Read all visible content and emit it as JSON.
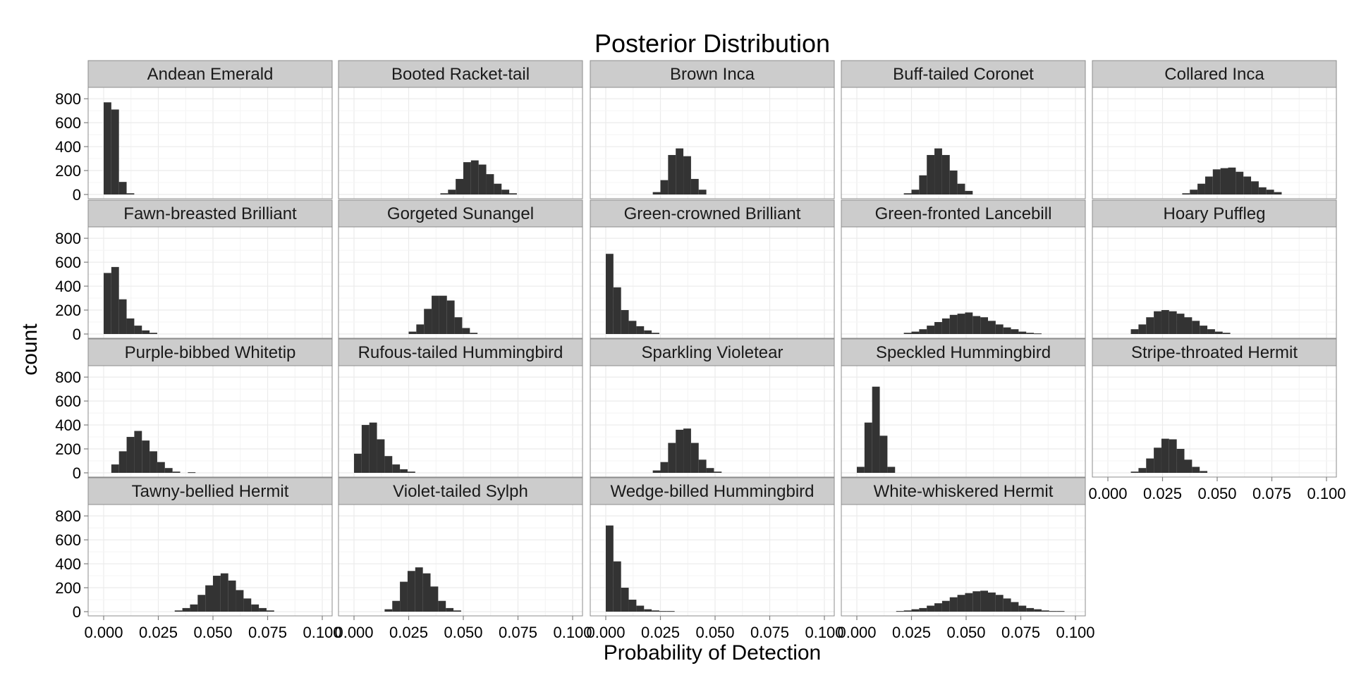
{
  "chart_data": {
    "type": "bar",
    "subtype": "faceted-histogram",
    "title": "Posterior Distribution",
    "xlabel": "Probability of Detection",
    "ylabel": "count",
    "xlim": [
      0,
      0.1
    ],
    "ylim": [
      0,
      800
    ],
    "x_ticks": [
      "0.000",
      "0.025",
      "0.050",
      "0.075",
      "0.100"
    ],
    "y_ticks": [
      "0",
      "200",
      "400",
      "600",
      "800"
    ],
    "bin_width": 0.0035,
    "grid": true,
    "facet_columns": 5,
    "bar_color": "#333333",
    "panel_background": "#ffffff",
    "strip_background": "#cccccc",
    "gridline_color": "#ebebeb",
    "panels": [
      {
        "name": "Andean Emerald",
        "bins": [
          {
            "x": 0.0,
            "count": 770
          },
          {
            "x": 0.0035,
            "count": 710
          },
          {
            "x": 0.007,
            "count": 105
          },
          {
            "x": 0.0105,
            "count": 10
          }
        ]
      },
      {
        "name": "Booted Racket-tail",
        "bins": [
          {
            "x": 0.0395,
            "count": 10
          },
          {
            "x": 0.043,
            "count": 40
          },
          {
            "x": 0.0465,
            "count": 130
          },
          {
            "x": 0.05,
            "count": 270
          },
          {
            "x": 0.0535,
            "count": 285
          },
          {
            "x": 0.057,
            "count": 250
          },
          {
            "x": 0.0605,
            "count": 170
          },
          {
            "x": 0.064,
            "count": 90
          },
          {
            "x": 0.0675,
            "count": 40
          },
          {
            "x": 0.071,
            "count": 10
          }
        ]
      },
      {
        "name": "Brown Inca",
        "bins": [
          {
            "x": 0.0215,
            "count": 20
          },
          {
            "x": 0.025,
            "count": 120
          },
          {
            "x": 0.0285,
            "count": 330
          },
          {
            "x": 0.032,
            "count": 385
          },
          {
            "x": 0.0355,
            "count": 320
          },
          {
            "x": 0.039,
            "count": 130
          },
          {
            "x": 0.0425,
            "count": 40
          }
        ]
      },
      {
        "name": "Buff-tailed Coronet",
        "bins": [
          {
            "x": 0.0215,
            "count": 10
          },
          {
            "x": 0.025,
            "count": 40
          },
          {
            "x": 0.0285,
            "count": 160
          },
          {
            "x": 0.032,
            "count": 330
          },
          {
            "x": 0.0355,
            "count": 385
          },
          {
            "x": 0.039,
            "count": 330
          },
          {
            "x": 0.0425,
            "count": 200
          },
          {
            "x": 0.046,
            "count": 90
          },
          {
            "x": 0.0495,
            "count": 30
          }
        ]
      },
      {
        "name": "Collared Inca",
        "bins": [
          {
            "x": 0.034,
            "count": 10
          },
          {
            "x": 0.0375,
            "count": 40
          },
          {
            "x": 0.041,
            "count": 90
          },
          {
            "x": 0.0445,
            "count": 150
          },
          {
            "x": 0.048,
            "count": 210
          },
          {
            "x": 0.0515,
            "count": 220
          },
          {
            "x": 0.055,
            "count": 225
          },
          {
            "x": 0.0585,
            "count": 190
          },
          {
            "x": 0.062,
            "count": 150
          },
          {
            "x": 0.0655,
            "count": 110
          },
          {
            "x": 0.069,
            "count": 60
          },
          {
            "x": 0.0725,
            "count": 40
          },
          {
            "x": 0.076,
            "count": 20
          }
        ]
      },
      {
        "name": "Fawn-breasted Brilliant",
        "bins": [
          {
            "x": 0.0,
            "count": 510
          },
          {
            "x": 0.0035,
            "count": 560
          },
          {
            "x": 0.007,
            "count": 290
          },
          {
            "x": 0.0105,
            "count": 130
          },
          {
            "x": 0.014,
            "count": 70
          },
          {
            "x": 0.0175,
            "count": 30
          },
          {
            "x": 0.021,
            "count": 10
          }
        ]
      },
      {
        "name": "Gorgeted Sunangel",
        "bins": [
          {
            "x": 0.025,
            "count": 20
          },
          {
            "x": 0.0285,
            "count": 80
          },
          {
            "x": 0.032,
            "count": 210
          },
          {
            "x": 0.0355,
            "count": 320
          },
          {
            "x": 0.039,
            "count": 320
          },
          {
            "x": 0.0425,
            "count": 280
          },
          {
            "x": 0.046,
            "count": 140
          },
          {
            "x": 0.0495,
            "count": 50
          },
          {
            "x": 0.053,
            "count": 10
          }
        ]
      },
      {
        "name": "Green-crowned Brilliant",
        "bins": [
          {
            "x": 0.0,
            "count": 670
          },
          {
            "x": 0.0035,
            "count": 390
          },
          {
            "x": 0.007,
            "count": 200
          },
          {
            "x": 0.0105,
            "count": 110
          },
          {
            "x": 0.014,
            "count": 65
          },
          {
            "x": 0.0175,
            "count": 30
          },
          {
            "x": 0.021,
            "count": 10
          }
        ]
      },
      {
        "name": "Green-fronted Lancebill",
        "bins": [
          {
            "x": 0.0215,
            "count": 10
          },
          {
            "x": 0.025,
            "count": 20
          },
          {
            "x": 0.0285,
            "count": 40
          },
          {
            "x": 0.032,
            "count": 70
          },
          {
            "x": 0.0355,
            "count": 100
          },
          {
            "x": 0.039,
            "count": 130
          },
          {
            "x": 0.0425,
            "count": 160
          },
          {
            "x": 0.046,
            "count": 170
          },
          {
            "x": 0.0495,
            "count": 180
          },
          {
            "x": 0.053,
            "count": 150
          },
          {
            "x": 0.0565,
            "count": 140
          },
          {
            "x": 0.06,
            "count": 110
          },
          {
            "x": 0.0635,
            "count": 80
          },
          {
            "x": 0.067,
            "count": 55
          },
          {
            "x": 0.0705,
            "count": 40
          },
          {
            "x": 0.074,
            "count": 20
          },
          {
            "x": 0.0775,
            "count": 10
          },
          {
            "x": 0.081,
            "count": 5
          }
        ]
      },
      {
        "name": "Hoary Puffleg",
        "bins": [
          {
            "x": 0.0105,
            "count": 40
          },
          {
            "x": 0.014,
            "count": 80
          },
          {
            "x": 0.0175,
            "count": 140
          },
          {
            "x": 0.021,
            "count": 190
          },
          {
            "x": 0.0245,
            "count": 200
          },
          {
            "x": 0.028,
            "count": 190
          },
          {
            "x": 0.0315,
            "count": 170
          },
          {
            "x": 0.035,
            "count": 140
          },
          {
            "x": 0.0385,
            "count": 110
          },
          {
            "x": 0.042,
            "count": 70
          },
          {
            "x": 0.0455,
            "count": 40
          },
          {
            "x": 0.049,
            "count": 20
          },
          {
            "x": 0.0525,
            "count": 10
          }
        ]
      },
      {
        "name": "Purple-bibbed Whitetip",
        "bins": [
          {
            "x": 0.0035,
            "count": 70
          },
          {
            "x": 0.007,
            "count": 180
          },
          {
            "x": 0.0105,
            "count": 300
          },
          {
            "x": 0.014,
            "count": 350
          },
          {
            "x": 0.0175,
            "count": 270
          },
          {
            "x": 0.021,
            "count": 180
          },
          {
            "x": 0.0245,
            "count": 90
          },
          {
            "x": 0.028,
            "count": 40
          },
          {
            "x": 0.0315,
            "count": 10
          },
          {
            "x": 0.0385,
            "count": 5
          }
        ]
      },
      {
        "name": "Rufous-tailed Hummingbird",
        "bins": [
          {
            "x": 0.0,
            "count": 160
          },
          {
            "x": 0.0035,
            "count": 400
          },
          {
            "x": 0.007,
            "count": 420
          },
          {
            "x": 0.0105,
            "count": 280
          },
          {
            "x": 0.014,
            "count": 140
          },
          {
            "x": 0.0175,
            "count": 70
          },
          {
            "x": 0.021,
            "count": 30
          },
          {
            "x": 0.0245,
            "count": 10
          }
        ]
      },
      {
        "name": "Sparkling Violetear",
        "bins": [
          {
            "x": 0.0215,
            "count": 20
          },
          {
            "x": 0.025,
            "count": 90
          },
          {
            "x": 0.0285,
            "count": 250
          },
          {
            "x": 0.032,
            "count": 360
          },
          {
            "x": 0.0355,
            "count": 370
          },
          {
            "x": 0.039,
            "count": 250
          },
          {
            "x": 0.0425,
            "count": 110
          },
          {
            "x": 0.046,
            "count": 40
          },
          {
            "x": 0.0495,
            "count": 10
          }
        ]
      },
      {
        "name": "Speckled Hummingbird",
        "bins": [
          {
            "x": 0.0,
            "count": 50
          },
          {
            "x": 0.0035,
            "count": 420
          },
          {
            "x": 0.007,
            "count": 720
          },
          {
            "x": 0.0105,
            "count": 310
          },
          {
            "x": 0.014,
            "count": 50
          }
        ]
      },
      {
        "name": "Stripe-throated Hermit",
        "bins": [
          {
            "x": 0.0105,
            "count": 10
          },
          {
            "x": 0.014,
            "count": 40
          },
          {
            "x": 0.0175,
            "count": 120
          },
          {
            "x": 0.021,
            "count": 210
          },
          {
            "x": 0.0245,
            "count": 285
          },
          {
            "x": 0.028,
            "count": 280
          },
          {
            "x": 0.0315,
            "count": 200
          },
          {
            "x": 0.035,
            "count": 110
          },
          {
            "x": 0.0385,
            "count": 50
          },
          {
            "x": 0.042,
            "count": 15
          }
        ]
      },
      {
        "name": "Tawny-bellied Hermit",
        "bins": [
          {
            "x": 0.0325,
            "count": 10
          },
          {
            "x": 0.036,
            "count": 30
          },
          {
            "x": 0.0395,
            "count": 60
          },
          {
            "x": 0.043,
            "count": 140
          },
          {
            "x": 0.0465,
            "count": 220
          },
          {
            "x": 0.05,
            "count": 300
          },
          {
            "x": 0.0535,
            "count": 320
          },
          {
            "x": 0.057,
            "count": 260
          },
          {
            "x": 0.0605,
            "count": 180
          },
          {
            "x": 0.064,
            "count": 110
          },
          {
            "x": 0.0675,
            "count": 60
          },
          {
            "x": 0.071,
            "count": 30
          },
          {
            "x": 0.0745,
            "count": 10
          }
        ]
      },
      {
        "name": "Violet-tailed Sylph",
        "bins": [
          {
            "x": 0.014,
            "count": 20
          },
          {
            "x": 0.0175,
            "count": 90
          },
          {
            "x": 0.021,
            "count": 250
          },
          {
            "x": 0.0245,
            "count": 340
          },
          {
            "x": 0.028,
            "count": 370
          },
          {
            "x": 0.0315,
            "count": 320
          },
          {
            "x": 0.035,
            "count": 210
          },
          {
            "x": 0.0385,
            "count": 90
          },
          {
            "x": 0.042,
            "count": 30
          },
          {
            "x": 0.0455,
            "count": 10
          }
        ]
      },
      {
        "name": "Wedge-billed Hummingbird",
        "bins": [
          {
            "x": 0.0,
            "count": 720
          },
          {
            "x": 0.0035,
            "count": 420
          },
          {
            "x": 0.007,
            "count": 200
          },
          {
            "x": 0.0105,
            "count": 100
          },
          {
            "x": 0.014,
            "count": 50
          },
          {
            "x": 0.0175,
            "count": 20
          },
          {
            "x": 0.021,
            "count": 10
          },
          {
            "x": 0.0245,
            "count": 5
          },
          {
            "x": 0.028,
            "count": 5
          }
        ]
      },
      {
        "name": "White-whiskered Hermit",
        "bins": [
          {
            "x": 0.018,
            "count": 5
          },
          {
            "x": 0.0215,
            "count": 10
          },
          {
            "x": 0.025,
            "count": 20
          },
          {
            "x": 0.0285,
            "count": 30
          },
          {
            "x": 0.032,
            "count": 50
          },
          {
            "x": 0.0355,
            "count": 70
          },
          {
            "x": 0.039,
            "count": 90
          },
          {
            "x": 0.0425,
            "count": 120
          },
          {
            "x": 0.046,
            "count": 140
          },
          {
            "x": 0.0495,
            "count": 155
          },
          {
            "x": 0.053,
            "count": 170
          },
          {
            "x": 0.0565,
            "count": 175
          },
          {
            "x": 0.06,
            "count": 160
          },
          {
            "x": 0.0635,
            "count": 140
          },
          {
            "x": 0.067,
            "count": 110
          },
          {
            "x": 0.0705,
            "count": 80
          },
          {
            "x": 0.074,
            "count": 50
          },
          {
            "x": 0.0775,
            "count": 30
          },
          {
            "x": 0.081,
            "count": 20
          },
          {
            "x": 0.0845,
            "count": 10
          },
          {
            "x": 0.088,
            "count": 5
          },
          {
            "x": 0.0915,
            "count": 5
          }
        ]
      }
    ]
  }
}
